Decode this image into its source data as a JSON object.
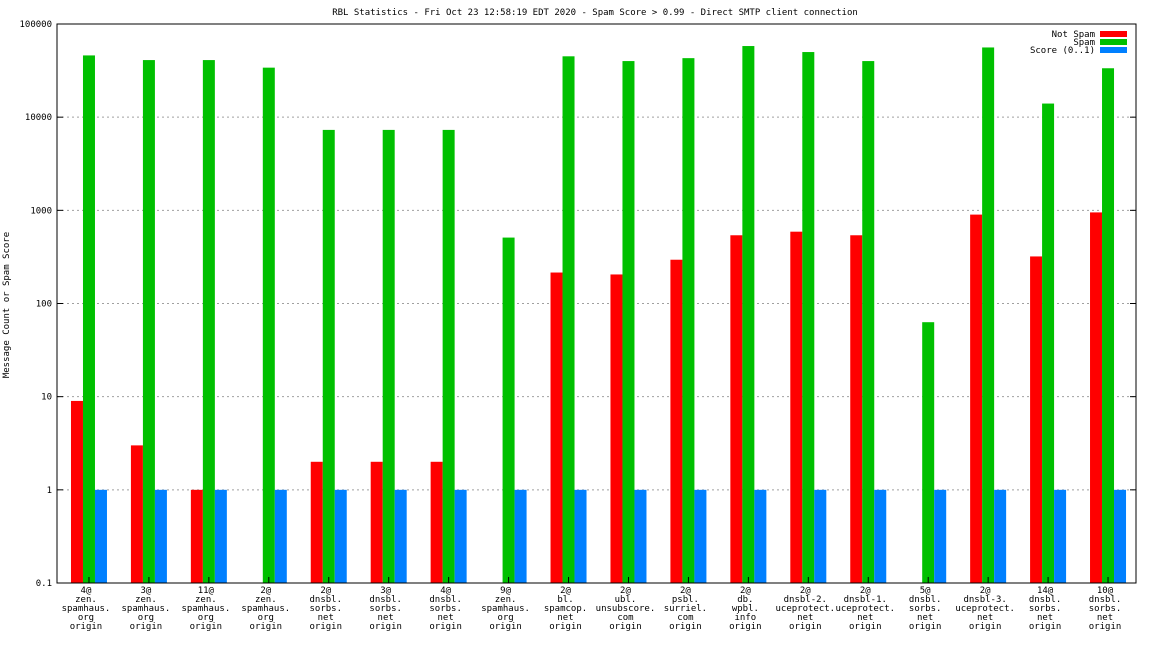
{
  "chart_data": {
    "type": "bar",
    "title": "RBL Statistics - Fri Oct 23 12:58:19 EDT 2020 - Spam Score > 0.99 - Direct SMTP client connection",
    "ylabel": "Message Count or Spam Score",
    "xlabel": "",
    "yscale": "log",
    "ylim": [
      0.1,
      100000
    ],
    "yticks": [
      "0.1",
      "1",
      "10",
      "100",
      "1000",
      "10000",
      "100000"
    ],
    "grid": true,
    "legend_position": "top-right",
    "categories": [
      [
        "4@",
        "zen.",
        "spamhaus.",
        "org",
        "origin"
      ],
      [
        "3@",
        "zen.",
        "spamhaus.",
        "org",
        "origin"
      ],
      [
        "11@",
        "zen.",
        "spamhaus.",
        "org",
        "origin"
      ],
      [
        "2@",
        "zen.",
        "spamhaus.",
        "org",
        "origin"
      ],
      [
        "2@",
        "dnsbl.",
        "sorbs.",
        "net",
        "origin"
      ],
      [
        "3@",
        "dnsbl.",
        "sorbs.",
        "net",
        "origin"
      ],
      [
        "4@",
        "dnsbl.",
        "sorbs.",
        "net",
        "origin"
      ],
      [
        "9@",
        "zen.",
        "spamhaus.",
        "org",
        "origin"
      ],
      [
        "2@",
        "bl.",
        "spamcop.",
        "net",
        "origin"
      ],
      [
        "2@",
        "ubl.",
        "unsubscore.",
        "com",
        "origin"
      ],
      [
        "2@",
        "psbl.",
        "surriel.",
        "com",
        "origin"
      ],
      [
        "2@",
        "db.",
        "wpbl.",
        "info",
        "origin"
      ],
      [
        "2@",
        "dnsbl-2.",
        "uceprotect.",
        "net",
        "origin"
      ],
      [
        "2@",
        "dnsbl-1.",
        "uceprotect.",
        "net",
        "origin"
      ],
      [
        "5@",
        "dnsbl.",
        "sorbs.",
        "net",
        "origin"
      ],
      [
        "2@",
        "dnsbl-3.",
        "uceprotect.",
        "net",
        "origin"
      ],
      [
        "14@",
        "dnsbl.",
        "sorbs.",
        "net",
        "origin"
      ],
      [
        "10@",
        "dnsbl.",
        "sorbs.",
        "net",
        "origin"
      ]
    ],
    "series": [
      {
        "name": "Not Spam",
        "color": "#ff0000",
        "values": [
          9,
          3,
          1,
          null,
          2,
          2,
          2,
          null,
          215,
          205,
          295,
          540,
          590,
          540,
          null,
          900,
          320,
          950
        ]
      },
      {
        "name": "Spam",
        "color": "#00c000",
        "values": [
          46000,
          41000,
          41000,
          34000,
          7300,
          7300,
          7300,
          510,
          45000,
          40000,
          43000,
          58000,
          50000,
          40000,
          63,
          56000,
          14000,
          33500
        ]
      },
      {
        "name": "Score (0..1)",
        "color": "#0080ff",
        "values": [
          1,
          1,
          1,
          1,
          1,
          1,
          1,
          1,
          1,
          1,
          1,
          1,
          1,
          1,
          1,
          1,
          1,
          1
        ]
      }
    ]
  }
}
